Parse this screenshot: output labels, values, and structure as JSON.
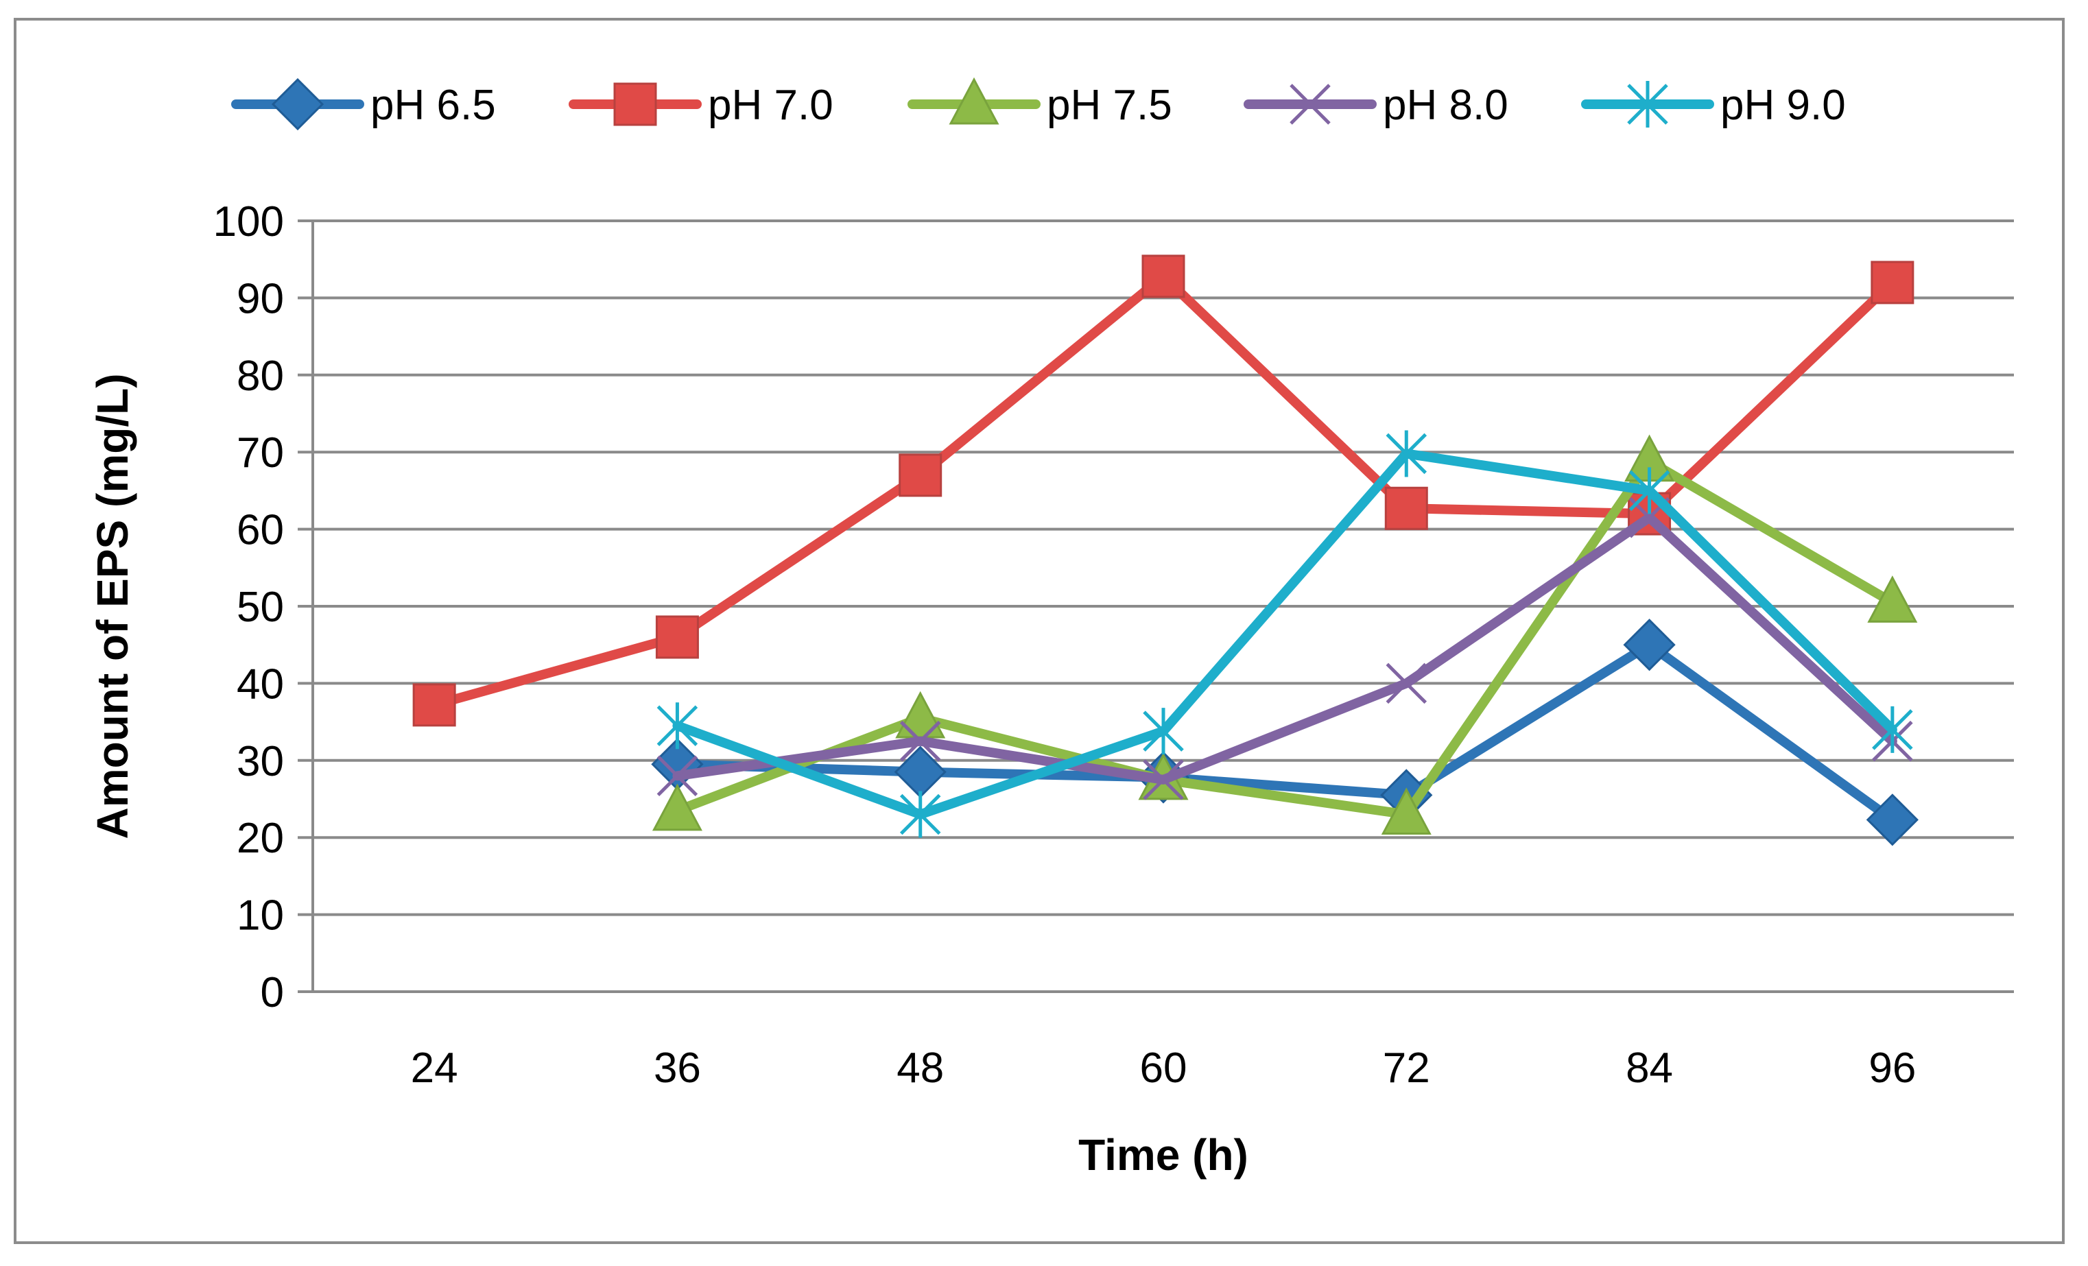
{
  "chart_data": {
    "type": "line",
    "title": "",
    "xlabel": "Time (h)",
    "ylabel": "Amount of EPS (mg/L)",
    "categories": [
      "24",
      "36",
      "48",
      "60",
      "72",
      "84",
      "96"
    ],
    "ylim": [
      0,
      100
    ],
    "yticks": [
      "0",
      "10",
      "20",
      "30",
      "40",
      "50",
      "60",
      "70",
      "80",
      "90",
      "100"
    ],
    "grid": true,
    "legend_position": "top",
    "series": [
      {
        "name": "pH 6.5",
        "color": "#2e75b6",
        "marker": "diamond",
        "values": [
          null,
          29.5,
          28.5,
          27.8,
          25.5,
          45.0,
          22.3
        ]
      },
      {
        "name": "pH 7.0",
        "color": "#e04a47",
        "marker": "square",
        "values": [
          37.2,
          46.0,
          67.0,
          92.8,
          62.7,
          62.0,
          92.0
        ]
      },
      {
        "name": "pH 7.5",
        "color": "#8dba47",
        "marker": "triangle",
        "values": [
          null,
          23.5,
          35.5,
          27.5,
          23.0,
          68.8,
          50.5
        ]
      },
      {
        "name": "pH 8.0",
        "color": "#8064a2",
        "marker": "x",
        "values": [
          null,
          28.0,
          32.5,
          27.5,
          40.0,
          61.5,
          32.5
        ]
      },
      {
        "name": "pH 9.0",
        "color": "#1eaecb",
        "marker": "asterisk",
        "values": [
          null,
          34.5,
          23.0,
          33.8,
          69.8,
          65.0,
          34.0
        ]
      }
    ]
  }
}
